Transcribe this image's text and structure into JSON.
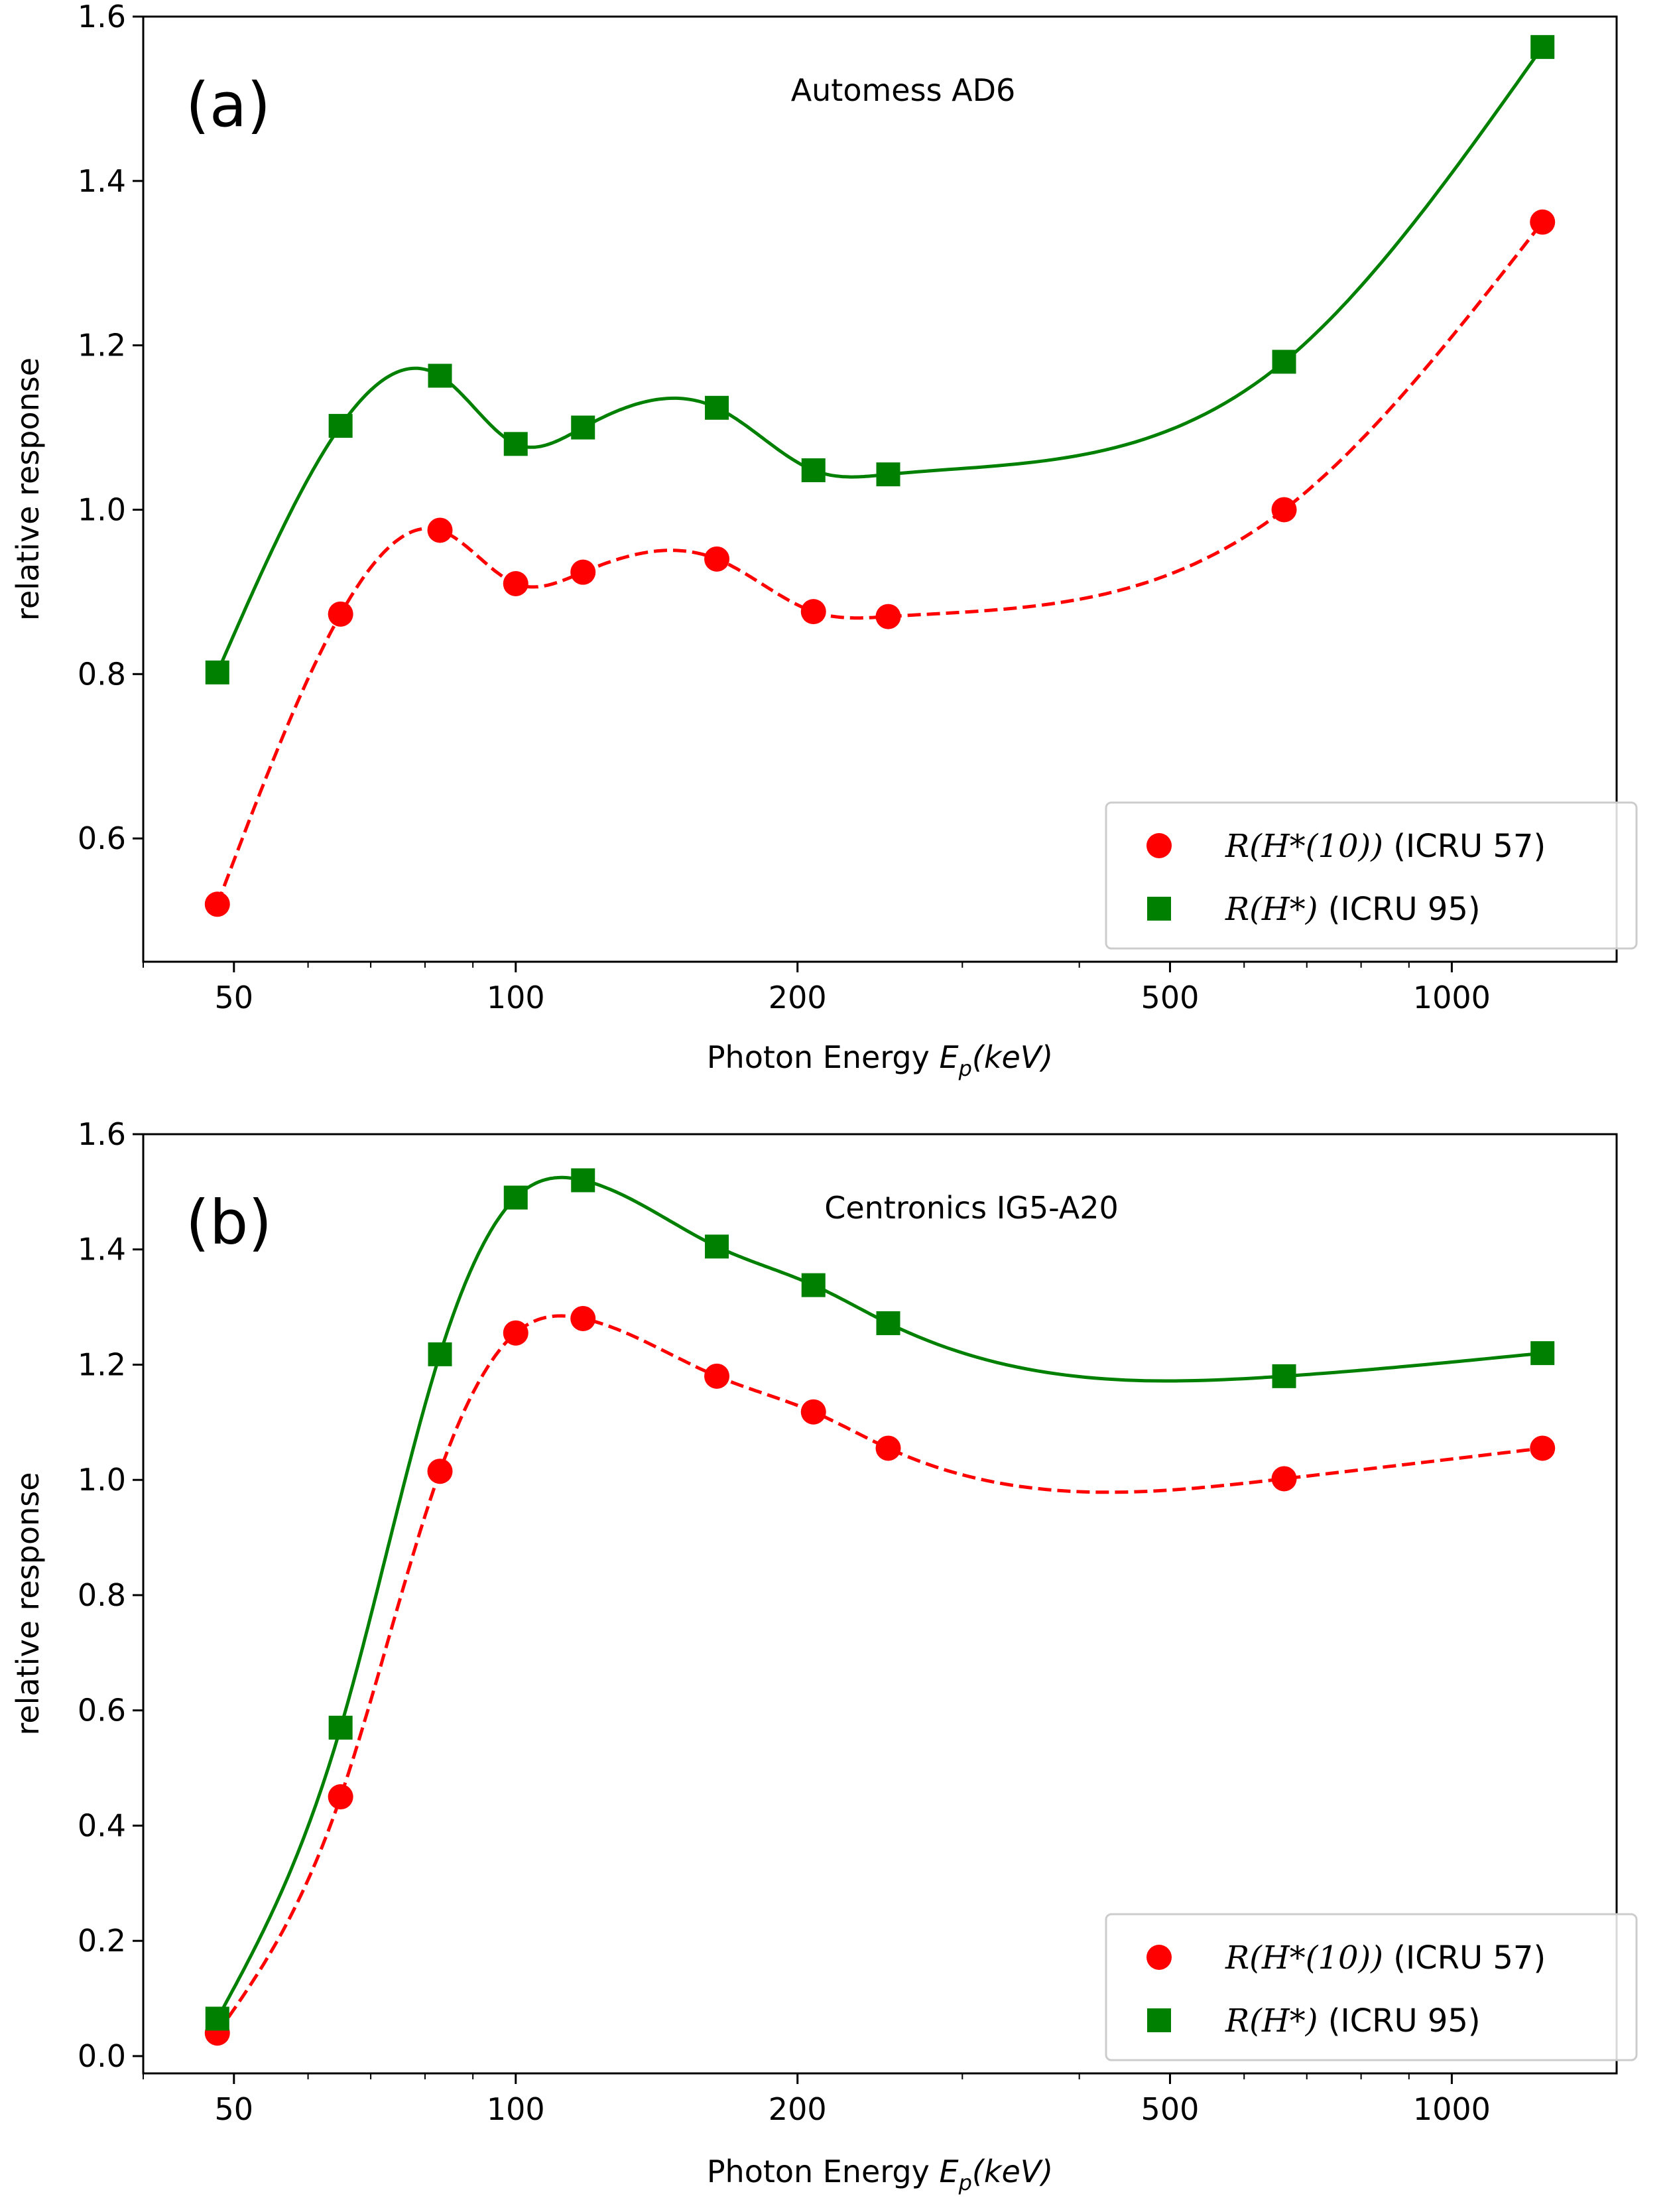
{
  "figure": {
    "x_label_main": "Photon Energy ",
    "x_label_sym": "E",
    "x_label_sub": "p",
    "x_label_unit": "(keV)",
    "y_label": "relative response"
  },
  "chart_data": [
    {
      "type": "line",
      "panel_label": "(a)",
      "title": "Automess AD6",
      "xlabel": "Photon Energy E_p(keV)",
      "ylabel": "relative response",
      "xscale": "log",
      "xlim": [
        40,
        1500
      ],
      "ylim": [
        0.45,
        1.6
      ],
      "xticks": [
        50,
        100,
        200,
        500,
        1000
      ],
      "xtick_labels": [
        "50",
        "100",
        "200",
        "500",
        "1000"
      ],
      "yticks": [
        0.6,
        0.8,
        1.0,
        1.2,
        1.4,
        1.6
      ],
      "ytick_labels": [
        "0.6",
        "0.8",
        "1.0",
        "1.2",
        "1.4",
        "1.6"
      ],
      "legend_position": "bottom-right",
      "series": [
        {
          "name": "R(H*(10)) (ICRU 57)",
          "legend_math": "R(H*(10))",
          "legend_text": " (ICRU 57)",
          "color": "#ff0000",
          "marker": "circle",
          "line_style": "dashed",
          "x": [
            48,
            65,
            83,
            100,
            118,
            164,
            208,
            250,
            662,
            1250
          ],
          "y": [
            0.52,
            0.873,
            0.975,
            0.91,
            0.924,
            0.94,
            0.876,
            0.87,
            1.0,
            1.35
          ]
        },
        {
          "name": "R(H*) (ICRU 95)",
          "legend_math": "R(H*)",
          "legend_text": " (ICRU 95)",
          "color": "#008000",
          "marker": "square",
          "line_style": "solid",
          "x": [
            48,
            65,
            83,
            100,
            118,
            164,
            208,
            250,
            662,
            1250
          ],
          "y": [
            0.802,
            1.102,
            1.163,
            1.08,
            1.1,
            1.124,
            1.048,
            1.043,
            1.18,
            1.563
          ]
        }
      ]
    },
    {
      "type": "line",
      "panel_label": "(b)",
      "title": "Centronics IG5-A20",
      "xlabel": "Photon Energy E_p(keV)",
      "ylabel": "relative response",
      "xscale": "log",
      "xlim": [
        40,
        1500
      ],
      "ylim": [
        -0.03,
        1.6
      ],
      "xticks": [
        50,
        100,
        200,
        500,
        1000
      ],
      "xtick_labels": [
        "50",
        "100",
        "200",
        "500",
        "1000"
      ],
      "yticks": [
        0.0,
        0.2,
        0.4,
        0.6,
        0.8,
        1.0,
        1.2,
        1.4,
        1.6
      ],
      "ytick_labels": [
        "0.0",
        "0.2",
        "0.4",
        "0.6",
        "0.8",
        "1.0",
        "1.2",
        "1.4",
        "1.6"
      ],
      "legend_position": "bottom-right",
      "series": [
        {
          "name": "R(H*(10)) (ICRU 57)",
          "legend_math": "R(H*(10))",
          "legend_text": " (ICRU 57)",
          "color": "#ff0000",
          "marker": "circle",
          "line_style": "dashed",
          "x": [
            48,
            65,
            83,
            100,
            118,
            164,
            208,
            250,
            662,
            1250
          ],
          "y": [
            0.04,
            0.45,
            1.015,
            1.255,
            1.28,
            1.18,
            1.118,
            1.055,
            1.002,
            1.055
          ]
        },
        {
          "name": "R(H*) (ICRU 95)",
          "legend_math": "R(H*)",
          "legend_text": " (ICRU 95)",
          "color": "#008000",
          "marker": "square",
          "line_style": "solid",
          "x": [
            48,
            65,
            83,
            100,
            118,
            164,
            208,
            250,
            662,
            1250
          ],
          "y": [
            0.065,
            0.57,
            1.218,
            1.49,
            1.52,
            1.405,
            1.338,
            1.272,
            1.18,
            1.22
          ]
        }
      ]
    }
  ]
}
